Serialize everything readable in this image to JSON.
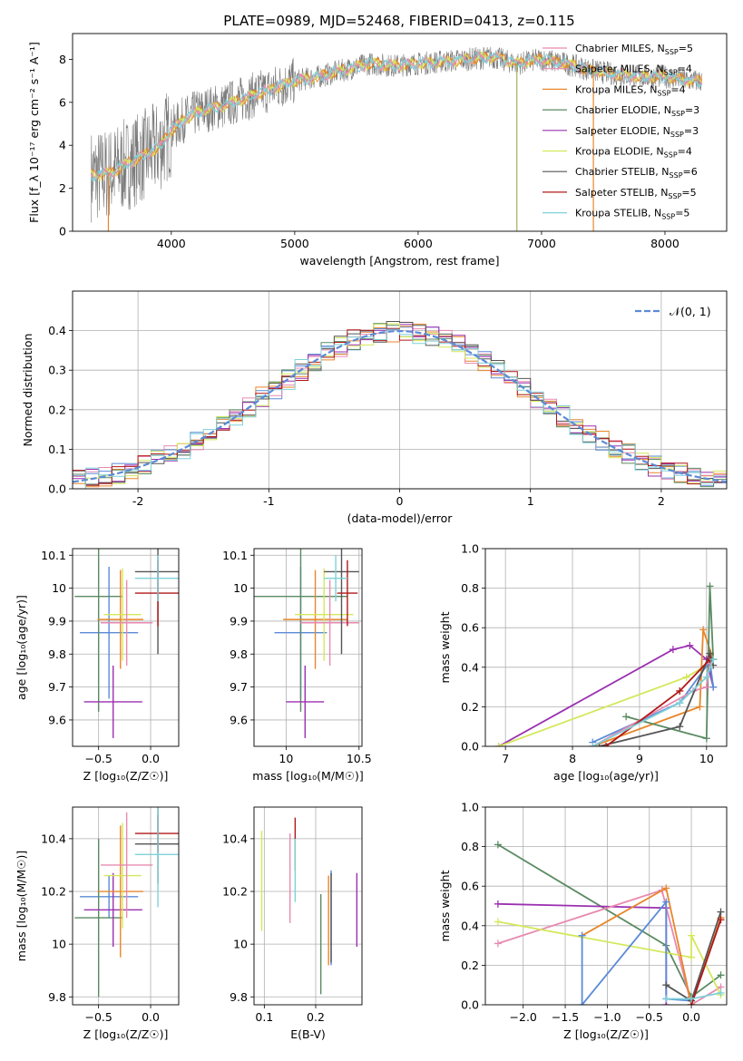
{
  "title": "PLATE=0989, MJD=52468, FIBERID=0413, z=0.115",
  "colors": {
    "Chabrier MILES": "#5b8bd6",
    "Salpeter MILES": "#e8862a",
    "Kroupa MILES": "#e8862a",
    "Chabrier ELODIE": "#5a8a62",
    "Salpeter ELODIE": "#9b30b0",
    "Kroupa ELODIE": "#d4e85a",
    "Chabrier STELIB": "#555555",
    "Salpeter STELIB": "#b01818",
    "Kroupa STELIB": "#7fd1d8",
    "Pink": "#e88ab0",
    "Normal": "#5b8bd6",
    "data": "#7a7a7a"
  },
  "chart_data": [
    {
      "type": "line",
      "id": "spectrum",
      "xlabel": "wavelength [Angstrom, rest frame]",
      "ylabel": "Flux [f_λ 10⁻¹⁷ erg cm⁻² s⁻¹ A⁻¹]",
      "xlim": [
        3200,
        8500
      ],
      "ylim": [
        0,
        9.2
      ],
      "xticks": [
        4000,
        5000,
        6000,
        7000,
        8000
      ],
      "yticks": [
        0,
        2,
        4,
        6,
        8
      ],
      "legend_position": "right",
      "legend": [
        {
          "label": "Chabrier MILES, N",
          "sub": "SSP",
          "tail": "=5",
          "color": "#e88ab0"
        },
        {
          "label": "Salpeter MILES, N",
          "sub": "SSP",
          "tail": "=4",
          "color": "#e88ab0"
        },
        {
          "label": "Kroupa MILES, N",
          "sub": "SSP",
          "tail": "=4",
          "color": "#e8862a"
        },
        {
          "label": "Chabrier ELODIE, N",
          "sub": "SSP",
          "tail": "=3",
          "color": "#5a8a62"
        },
        {
          "label": "Salpeter ELODIE, N",
          "sub": "SSP",
          "tail": "=3",
          "color": "#9b30b0"
        },
        {
          "label": "Kroupa ELODIE, N",
          "sub": "SSP",
          "tail": "=4",
          "color": "#d4e85a"
        },
        {
          "label": "Chabrier STELIB, N",
          "sub": "SSP",
          "tail": "=6",
          "color": "#555555"
        },
        {
          "label": "Salpeter STELIB, N",
          "sub": "SSP",
          "tail": "=5",
          "color": "#b01818"
        },
        {
          "label": "Kroupa STELIB, N",
          "sub": "SSP",
          "tail": "=5",
          "color": "#7fd1d8"
        }
      ],
      "model_curve": {
        "x": [
          3400,
          3500,
          3600,
          3700,
          3800,
          3900,
          4000,
          4100,
          4200,
          4300,
          4400,
          4600,
          4800,
          5000,
          5200,
          5400,
          5600,
          5800,
          6000,
          6200,
          6400,
          6600,
          6800,
          7000,
          7200,
          7400,
          7600,
          7800,
          8000,
          8200
        ],
        "y": [
          2.6,
          2.7,
          3.0,
          3.3,
          3.6,
          3.9,
          4.7,
          5.2,
          5.5,
          5.7,
          5.8,
          6.2,
          6.6,
          7.0,
          7.2,
          7.5,
          7.8,
          7.7,
          7.8,
          7.9,
          8.0,
          8.1,
          7.8,
          8.0,
          7.8,
          7.5,
          7.3,
          7.2,
          7.2,
          7.0
        ]
      }
    },
    {
      "type": "step",
      "id": "residuals",
      "xlabel": "(data-model)/error",
      "ylabel": "Normed distribution",
      "xlim": [
        -2.5,
        2.5
      ],
      "ylim": [
        0,
        0.5
      ],
      "xticks": [
        -2,
        -1,
        0,
        1,
        2
      ],
      "yticks": [
        0.0,
        0.1,
        0.2,
        0.3,
        0.4
      ],
      "legend_label": "𝒩(0, 1)",
      "legend_position": "top-right"
    },
    {
      "type": "errorbar",
      "id": "age_vs_Z",
      "xlabel": "Z [log₁₀(Z/Z☉)]",
      "ylabel": "age  [log₁₀(age/yr)]",
      "xlim": [
        -0.75,
        0.27
      ],
      "ylim": [
        9.52,
        10.12
      ],
      "xticks": [
        -0.5,
        0.0
      ],
      "xticklabels": [
        "−0.5",
        "0.0"
      ],
      "yticks": [
        9.6,
        9.7,
        9.8,
        9.9,
        10.0,
        10.1
      ],
      "points": [
        {
          "x": -0.4,
          "xerr": 0.28,
          "y": 9.865,
          "yerr": 0.2,
          "color": "#5b8bd6"
        },
        {
          "x": -0.5,
          "xerr": 0.23,
          "y": 9.975,
          "yerr": 0.35,
          "color": "#5a8a62"
        },
        {
          "x": -0.36,
          "xerr": 0.28,
          "y": 9.655,
          "yerr": 0.11,
          "color": "#9b30b0"
        },
        {
          "x": -0.29,
          "xerr": 0.22,
          "y": 9.905,
          "yerr": 0.15,
          "color": "#e8862a"
        },
        {
          "x": -0.27,
          "xerr": 0.18,
          "y": 9.92,
          "yerr": 0.14,
          "color": "#d4e85a"
        },
        {
          "x": -0.23,
          "xerr": 0.25,
          "y": 9.895,
          "yerr": 0.13,
          "color": "#e88ab0"
        },
        {
          "x": 0.07,
          "xerr": 0.22,
          "y": 10.05,
          "yerr": 0.25,
          "color": "#555555"
        },
        {
          "x": 0.07,
          "xerr": 0.22,
          "y": 9.985,
          "yerr": 0.1,
          "color": "#b01818"
        },
        {
          "x": 0.07,
          "xerr": 0.22,
          "y": 10.03,
          "yerr": 0.07,
          "color": "#7fd1d8"
        }
      ]
    },
    {
      "type": "errorbar",
      "id": "age_vs_mass",
      "xlabel": "mass [log₁₀(M/M☉)]",
      "xlim": [
        9.78,
        10.52
      ],
      "ylim": [
        9.52,
        10.12
      ],
      "xticks": [
        10.0,
        10.5
      ],
      "yticks": [
        9.6,
        9.7,
        9.8,
        9.9,
        10.0,
        10.1
      ],
      "points": [
        {
          "x": 10.1,
          "xerr": 0.18,
          "y": 9.865,
          "yerr": 0.2,
          "color": "#5b8bd6"
        },
        {
          "x": 10.1,
          "xerr": 0.32,
          "y": 9.975,
          "yerr": 0.35,
          "color": "#5a8a62"
        },
        {
          "x": 10.13,
          "xerr": 0.13,
          "y": 9.655,
          "yerr": 0.11,
          "color": "#9b30b0"
        },
        {
          "x": 10.2,
          "xerr": 0.22,
          "y": 9.905,
          "yerr": 0.15,
          "color": "#e8862a"
        },
        {
          "x": 10.26,
          "xerr": 0.2,
          "y": 9.92,
          "yerr": 0.14,
          "color": "#d4e85a"
        },
        {
          "x": 10.3,
          "xerr": 0.2,
          "y": 9.895,
          "yerr": 0.13,
          "color": "#e88ab0"
        },
        {
          "x": 10.38,
          "xerr": 0.12,
          "y": 10.05,
          "yerr": 0.25,
          "color": "#555555"
        },
        {
          "x": 10.42,
          "xerr": 0.07,
          "y": 9.985,
          "yerr": 0.1,
          "color": "#b01818"
        },
        {
          "x": 10.34,
          "xerr": 0.08,
          "y": 10.03,
          "yerr": 0.07,
          "color": "#7fd1d8"
        }
      ]
    },
    {
      "type": "line",
      "id": "mass_weight_vs_age",
      "xlabel": "age  [log₁₀(age/yr)]",
      "ylabel": "mass weight",
      "xlim": [
        6.7,
        10.3
      ],
      "ylim": [
        0,
        1.0
      ],
      "xticks": [
        7,
        8,
        9,
        10
      ],
      "yticks": [
        0.0,
        0.2,
        0.4,
        0.6,
        0.8,
        1.0
      ],
      "series": [
        {
          "color": "#9b30b0",
          "x": [
            6.9,
            9.5,
            9.75,
            10.0,
            10.1
          ],
          "y": [
            0.0,
            0.49,
            0.51,
            0.44,
            0.3
          ]
        },
        {
          "color": "#d4e85a",
          "x": [
            6.9,
            9.7,
            10.05,
            10.1
          ],
          "y": [
            0.0,
            0.35,
            0.42,
            0.44
          ]
        },
        {
          "color": "#e8862a",
          "x": [
            8.3,
            9.9,
            9.95,
            10.1
          ],
          "y": [
            0.0,
            0.2,
            0.59,
            0.44
          ]
        },
        {
          "color": "#5a8a62",
          "x": [
            8.8,
            10.0,
            10.05,
            10.1
          ],
          "y": [
            0.15,
            0.04,
            0.81,
            0.44
          ]
        },
        {
          "color": "#5b8bd6",
          "x": [
            8.3,
            9.6,
            10.05,
            10.1
          ],
          "y": [
            0.02,
            0.22,
            0.43,
            0.3
          ]
        },
        {
          "color": "#e88ab0",
          "x": [
            8.3,
            9.8,
            10.0,
            10.05
          ],
          "y": [
            0.0,
            0.28,
            0.3,
            0.42
          ]
        },
        {
          "color": "#555555",
          "x": [
            8.4,
            9.6,
            10.05,
            10.1
          ],
          "y": [
            0.0,
            0.1,
            0.47,
            0.41
          ]
        },
        {
          "color": "#b01818",
          "x": [
            8.5,
            9.6,
            10.05
          ],
          "y": [
            0.0,
            0.28,
            0.44
          ]
        },
        {
          "color": "#7fd1d8",
          "x": [
            8.3,
            9.6,
            10.0,
            10.1
          ],
          "y": [
            0.0,
            0.22,
            0.35,
            0.44
          ]
        }
      ]
    },
    {
      "type": "errorbar",
      "id": "mass_vs_Z",
      "xlabel": "Z [log₁₀(Z/Z☉)]",
      "ylabel": "mass [log₁₀(M/M☉)]",
      "xlim": [
        -0.75,
        0.27
      ],
      "ylim": [
        9.77,
        10.52
      ],
      "xticks": [
        -0.5,
        0.0
      ],
      "xticklabels": [
        "−0.5",
        "0.0"
      ],
      "yticks": [
        9.8,
        10.0,
        10.2,
        10.4
      ],
      "points": [
        {
          "x": -0.4,
          "xerr": 0.28,
          "y": 10.18,
          "yerr": 0.08,
          "color": "#5b8bd6"
        },
        {
          "x": -0.5,
          "xerr": 0.23,
          "y": 10.1,
          "yerr": 0.3,
          "color": "#5a8a62"
        },
        {
          "x": -0.36,
          "xerr": 0.28,
          "y": 10.13,
          "yerr": 0.14,
          "color": "#9b30b0"
        },
        {
          "x": -0.29,
          "xerr": 0.22,
          "y": 10.2,
          "yerr": 0.25,
          "color": "#e8862a"
        },
        {
          "x": -0.27,
          "xerr": 0.18,
          "y": 10.26,
          "yerr": 0.2,
          "color": "#d4e85a"
        },
        {
          "x": -0.23,
          "xerr": 0.25,
          "y": 10.3,
          "yerr": 0.2,
          "color": "#e88ab0"
        },
        {
          "x": 0.07,
          "xerr": 0.22,
          "y": 10.38,
          "yerr": 0.15,
          "color": "#555555"
        },
        {
          "x": 0.07,
          "xerr": 0.22,
          "y": 10.42,
          "yerr": 0.07,
          "color": "#b01818"
        },
        {
          "x": 0.07,
          "xerr": 0.22,
          "y": 10.34,
          "yerr": 0.2,
          "color": "#7fd1d8"
        }
      ]
    },
    {
      "type": "errorbar",
      "id": "mass_vs_EBV",
      "xlabel": "E(B-V)",
      "xlim": [
        0.08,
        0.29
      ],
      "ylim": [
        9.77,
        10.52
      ],
      "xticks": [
        0.1,
        0.2
      ],
      "yticks": [
        9.8,
        10.0,
        10.2,
        10.4
      ],
      "points": [
        {
          "x": 0.23,
          "y": 10.1,
          "yerr": 0.18,
          "color": "#5b8bd6"
        },
        {
          "x": 0.21,
          "y": 10.0,
          "yerr": 0.19,
          "color": "#5a8a62"
        },
        {
          "x": 0.28,
          "y": 10.13,
          "yerr": 0.14,
          "color": "#9b30b0"
        },
        {
          "x": 0.225,
          "y": 10.09,
          "yerr": 0.17,
          "color": "#e8862a"
        },
        {
          "x": 0.095,
          "y": 10.24,
          "yerr": 0.19,
          "color": "#d4e85a"
        },
        {
          "x": 0.15,
          "y": 10.25,
          "yerr": 0.17,
          "color": "#e88ab0"
        },
        {
          "x": 0.23,
          "y": 10.1,
          "yerr": 0.17,
          "color": "#555555"
        },
        {
          "x": 0.16,
          "y": 10.38,
          "yerr": 0.1,
          "color": "#b01818"
        },
        {
          "x": 0.16,
          "y": 10.28,
          "yerr": 0.12,
          "color": "#7fd1d8"
        }
      ]
    },
    {
      "type": "line",
      "id": "mass_weight_vs_Z",
      "xlabel": "Z [log₁₀(Z/Z☉)]",
      "ylabel": "mass weight",
      "xlim": [
        -2.45,
        0.42
      ],
      "ylim": [
        0,
        1.0
      ],
      "xticks": [
        -2.0,
        -1.5,
        -1.0,
        -0.5,
        0.0
      ],
      "xticklabels": [
        "−2.0",
        "−1.5",
        "−1.0",
        "−0.5",
        "0.0"
      ],
      "yticks": [
        0.0,
        0.2,
        0.4,
        0.6,
        0.8,
        1.0
      ],
      "series": [
        {
          "color": "#5a8a62",
          "x": [
            -2.3,
            -0.3,
            0.0,
            0.35
          ],
          "y": [
            0.81,
            0.3,
            0.04,
            0.15
          ]
        },
        {
          "color": "#9b30b0",
          "x": [
            -2.3,
            -0.3,
            -0.3
          ],
          "y": [
            0.51,
            0.49,
            0.0
          ]
        },
        {
          "color": "#e88ab0",
          "x": [
            -2.3,
            -0.35,
            0.0,
            0.35
          ],
          "y": [
            0.31,
            0.58,
            0.0,
            0.09
          ]
        },
        {
          "color": "#d4e85a",
          "x": [
            -2.3,
            0.0,
            0.0,
            0.35
          ],
          "y": [
            0.42,
            0.24,
            0.35,
            0.05
          ]
        },
        {
          "color": "#e8862a",
          "x": [
            -1.3,
            -0.3,
            0.0,
            0.35
          ],
          "y": [
            0.35,
            0.59,
            0.0,
            0.44
          ]
        },
        {
          "color": "#5b8bd6",
          "x": [
            -1.3,
            -1.3,
            -0.3,
            -0.3,
            0.0
          ],
          "y": [
            0.35,
            0.0,
            0.52,
            0.03,
            0.02
          ]
        },
        {
          "color": "#555555",
          "x": [
            -0.3,
            0.0,
            0.35
          ],
          "y": [
            0.1,
            0.02,
            0.47
          ]
        },
        {
          "color": "#b01818",
          "x": [
            0.0,
            0.35
          ],
          "y": [
            0.0,
            0.43
          ]
        },
        {
          "color": "#7fd1d8",
          "x": [
            -0.3,
            0.0,
            0.35
          ],
          "y": [
            0.03,
            0.03,
            0.06
          ]
        }
      ]
    }
  ]
}
